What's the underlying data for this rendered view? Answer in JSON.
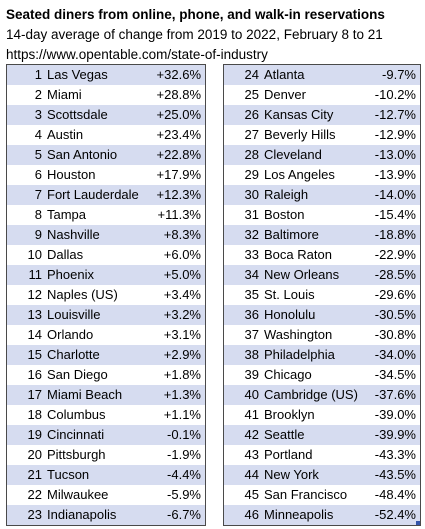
{
  "header": {
    "title": "Seated diners from online, phone, and walk-in reservations",
    "subtitle": "14-day average of change from 2019 to 2022, February 8 to 21",
    "source": "https://www.opentable.com/state-of-industry"
  },
  "rows": [
    {
      "rank": "1",
      "city": "Las Vegas",
      "change": "+32.6%"
    },
    {
      "rank": "2",
      "city": "Miami",
      "change": "+28.8%"
    },
    {
      "rank": "3",
      "city": "Scottsdale",
      "change": "+25.0%"
    },
    {
      "rank": "4",
      "city": "Austin",
      "change": "+23.4%"
    },
    {
      "rank": "5",
      "city": "San Antonio",
      "change": "+22.8%"
    },
    {
      "rank": "6",
      "city": "Houston",
      "change": "+17.9%"
    },
    {
      "rank": "7",
      "city": "Fort Lauderdale",
      "change": "+12.3%"
    },
    {
      "rank": "8",
      "city": "Tampa",
      "change": "+11.3%"
    },
    {
      "rank": "9",
      "city": "Nashville",
      "change": "+8.3%"
    },
    {
      "rank": "10",
      "city": "Dallas",
      "change": "+6.0%"
    },
    {
      "rank": "11",
      "city": "Phoenix",
      "change": "+5.0%"
    },
    {
      "rank": "12",
      "city": "Naples (US)",
      "change": "+3.4%"
    },
    {
      "rank": "13",
      "city": "Louisville",
      "change": "+3.2%"
    },
    {
      "rank": "14",
      "city": "Orlando",
      "change": "+3.1%"
    },
    {
      "rank": "15",
      "city": "Charlotte",
      "change": "+2.9%"
    },
    {
      "rank": "16",
      "city": "San Diego",
      "change": "+1.8%"
    },
    {
      "rank": "17",
      "city": "Miami Beach",
      "change": "+1.3%"
    },
    {
      "rank": "18",
      "city": "Columbus",
      "change": "+1.1%"
    },
    {
      "rank": "19",
      "city": "Cincinnati",
      "change": "-0.1%"
    },
    {
      "rank": "20",
      "city": "Pittsburgh",
      "change": "-1.9%"
    },
    {
      "rank": "21",
      "city": "Tucson",
      "change": "-4.4%"
    },
    {
      "rank": "22",
      "city": "Milwaukee",
      "change": "-5.9%"
    },
    {
      "rank": "23",
      "city": "Indianapolis",
      "change": "-6.7%"
    },
    {
      "rank": "24",
      "city": "Atlanta",
      "change": "-9.7%"
    },
    {
      "rank": "25",
      "city": "Denver",
      "change": "-10.2%"
    },
    {
      "rank": "26",
      "city": "Kansas City",
      "change": "-12.7%"
    },
    {
      "rank": "27",
      "city": "Beverly Hills",
      "change": "-12.9%"
    },
    {
      "rank": "28",
      "city": "Cleveland",
      "change": "-13.0%"
    },
    {
      "rank": "29",
      "city": "Los Angeles",
      "change": "-13.9%"
    },
    {
      "rank": "30",
      "city": "Raleigh",
      "change": "-14.0%"
    },
    {
      "rank": "31",
      "city": "Boston",
      "change": "-15.4%"
    },
    {
      "rank": "32",
      "city": "Baltimore",
      "change": "-18.8%"
    },
    {
      "rank": "33",
      "city": "Boca Raton",
      "change": "-22.9%"
    },
    {
      "rank": "34",
      "city": "New Orleans",
      "change": "-28.5%"
    },
    {
      "rank": "35",
      "city": "St. Louis",
      "change": "-29.6%"
    },
    {
      "rank": "36",
      "city": "Honolulu",
      "change": "-30.5%"
    },
    {
      "rank": "37",
      "city": "Washington",
      "change": "-30.8%"
    },
    {
      "rank": "38",
      "city": "Philadelphia",
      "change": "-34.0%"
    },
    {
      "rank": "39",
      "city": "Chicago",
      "change": "-34.5%"
    },
    {
      "rank": "40",
      "city": "Cambridge (US)",
      "change": "-37.6%"
    },
    {
      "rank": "41",
      "city": "Brooklyn",
      "change": "-39.0%"
    },
    {
      "rank": "42",
      "city": "Seattle",
      "change": "-39.9%"
    },
    {
      "rank": "43",
      "city": "Portland",
      "change": "-43.3%"
    },
    {
      "rank": "44",
      "city": "New York",
      "change": "-43.5%"
    },
    {
      "rank": "45",
      "city": "San Francisco",
      "change": "-48.4%"
    },
    {
      "rank": "46",
      "city": "Minneapolis",
      "change": "-52.4%"
    }
  ],
  "colors": {
    "band": "#d6dcf0",
    "border": "#4a4a4a",
    "corner_marker": "#2e7d32",
    "selection_handle": "#3355aa"
  }
}
